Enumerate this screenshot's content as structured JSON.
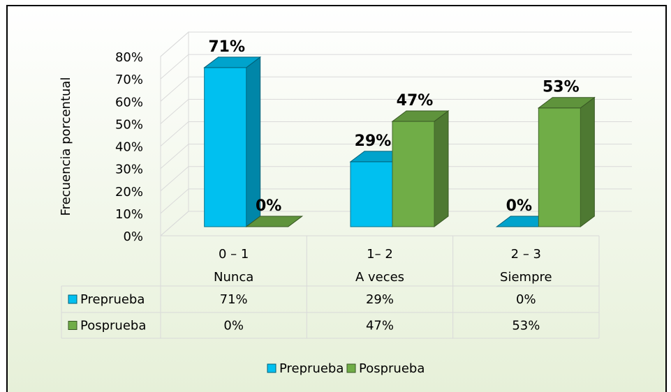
{
  "chart_data": {
    "type": "bar3d",
    "y_axis_label": "Frecuencia porcentual",
    "categories": [
      [
        "0 – 1",
        "Nunca"
      ],
      [
        "1– 2",
        "A veces"
      ],
      [
        "2 – 3",
        "Siempre"
      ]
    ],
    "series": [
      {
        "name": "Preprueba",
        "color": "#00c0f0",
        "values": [
          71,
          29,
          0
        ],
        "value_labels": [
          "71%",
          "29%",
          "0%"
        ]
      },
      {
        "name": "Posprueba",
        "color": "#70ad47",
        "values": [
          0,
          47,
          53
        ],
        "value_labels": [
          "0%",
          "47%",
          "53%"
        ]
      }
    ],
    "ylim": [
      0,
      80
    ],
    "yticks": [
      {
        "value": 0,
        "label": "0%"
      },
      {
        "value": 10,
        "label": "10%"
      },
      {
        "value": 20,
        "label": "20%"
      },
      {
        "value": 30,
        "label": "30%"
      },
      {
        "value": 40,
        "label": "40%"
      },
      {
        "value": 50,
        "label": "50%"
      },
      {
        "value": 60,
        "label": "60%"
      },
      {
        "value": 70,
        "label": "70%"
      },
      {
        "value": 80,
        "label": "80%"
      }
    ],
    "grid": true,
    "legend": "bottom"
  }
}
